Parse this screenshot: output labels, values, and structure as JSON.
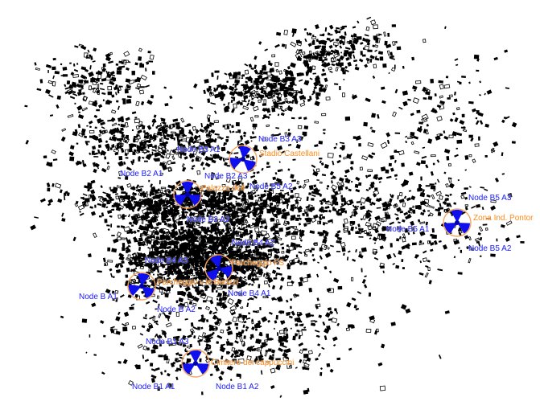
{
  "map": {
    "sites": [
      {
        "name": "Stadio Castellani",
        "node_labels": [
          "Node B3 A1",
          "Node B3 A3",
          "Node B2 A3"
        ]
      },
      {
        "name": "Palazza dell",
        "node_labels": [
          "Node B2 A1",
          "Node B5 A2",
          "Node B2 A2"
        ]
      },
      {
        "name": "Zona Ind. Pontor",
        "node_labels": [
          "Node B5 A3",
          "Node B5 A1",
          "Node B5 A2"
        ]
      },
      {
        "name": "Parcheggio FS",
        "node_labels": [
          "Node B4 A3",
          "Node B4 A2",
          "Node B4 A1"
        ]
      },
      {
        "name": "Parcheggio v.le Buozzi",
        "node_labels": [
          "Node B A1",
          "Node B A2"
        ]
      },
      {
        "name": "Cimitero dei cappuccini",
        "node_labels": [
          "Node B1 A3",
          "Node B1 A1",
          "Node B1 A2"
        ]
      }
    ],
    "colors": {
      "node_label": "#1a1aff",
      "site_label": "#ff8a1a",
      "sector_fill": "#1010ee",
      "coverage_circle": "#f4a460",
      "buildings": "#000000",
      "background": "#ffffff"
    },
    "icon_names": [
      "three-sector-antenna-icon"
    ]
  }
}
